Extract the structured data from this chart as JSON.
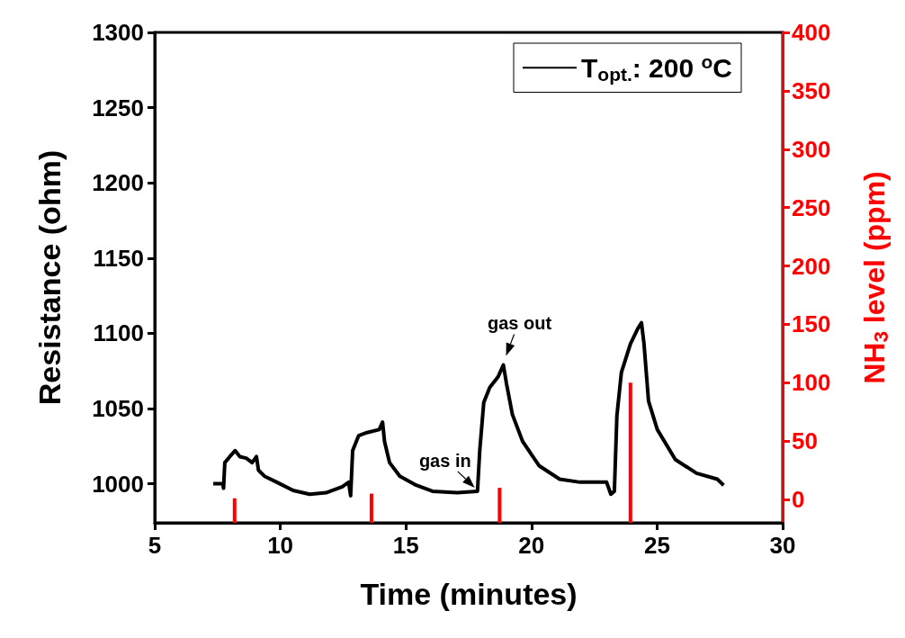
{
  "chart_data": {
    "type": "line",
    "xlabel": "Time (minutes)",
    "ylabel": "Resistance (ohm)",
    "y2label": "NH$_{3}$ level (ppm)",
    "xlim": [
      5,
      30
    ],
    "xticks": [
      5,
      10,
      15,
      20,
      25,
      30
    ],
    "ylim": [
      974,
      1300
    ],
    "yticks": [
      1000,
      1050,
      1100,
      1150,
      1200,
      1250,
      1300
    ],
    "y2lim": [
      -20,
      400
    ],
    "y2ticks": [
      0,
      50,
      100,
      150,
      200,
      250,
      300,
      350,
      400
    ],
    "legend": "top right",
    "grid": false,
    "series": [
      {
        "name": "T$_{opt.}$: 200 $^{o}$C",
        "color": "#000000",
        "x": [
          7.33,
          7.71,
          7.74,
          7.79,
          7.99,
          8.2,
          8.39,
          8.64,
          8.88,
          9.05,
          9.13,
          9.37,
          9.86,
          10.51,
          11.17,
          11.82,
          12.47,
          12.72,
          12.8,
          12.88,
          13.12,
          13.45,
          13.94,
          14.07,
          14.15,
          14.35,
          14.76,
          15.41,
          16.06,
          17.04,
          17.85,
          17.94,
          18.1,
          18.34,
          18.67,
          18.88,
          19.0,
          19.24,
          19.65,
          20.3,
          21.12,
          21.93,
          22.99,
          23.16,
          23.3,
          23.4,
          23.58,
          23.94,
          24.23,
          24.38,
          24.48,
          24.66,
          25.01,
          25.73,
          26.57,
          27.4,
          27.65
        ],
        "values": [
          1000,
          1000,
          997,
          1014,
          1018,
          1022,
          1018,
          1017,
          1014,
          1018,
          1009,
          1005,
          1001,
          995.5,
          993,
          994,
          998,
          1001,
          992,
          1022,
          1032,
          1034,
          1036,
          1041,
          1028,
          1014,
          1005,
          999,
          995,
          994,
          995,
          1022,
          1054,
          1064,
          1071,
          1079,
          1067,
          1046,
          1028,
          1012,
          1003,
          1001,
          1001,
          993,
          995,
          1045,
          1074,
          1093,
          1103,
          1107,
          1093,
          1055,
          1036,
          1016,
          1007,
          1003,
          999
        ]
      },
      {
        "type": "bar",
        "axis": "y2",
        "color": "#ff0000",
        "x": [
          8.18,
          13.63,
          18.73,
          23.94
        ],
        "base": [
          -20,
          -20,
          -20,
          -20
        ],
        "values": [
          21,
          25,
          30,
          120
        ]
      }
    ],
    "annotations": [
      {
        "text": "gas in",
        "x": 17.85,
        "y": 995
      },
      {
        "text": "gas out",
        "x": 18.88,
        "y": 1079
      }
    ]
  }
}
